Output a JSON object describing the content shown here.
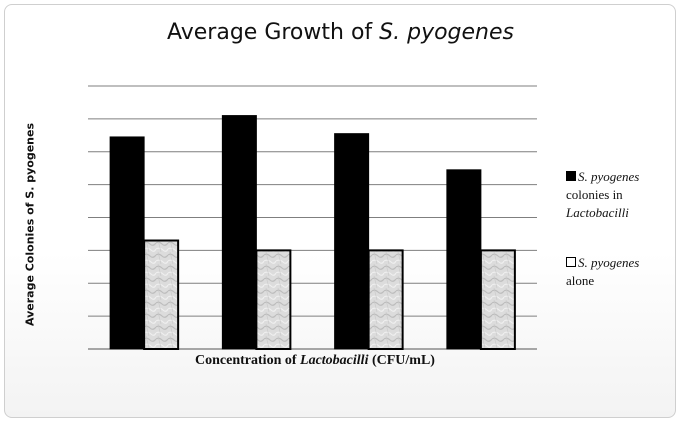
{
  "chart_data": {
    "type": "bar",
    "title_main": "Average Growth of ",
    "title_italic": "S. pyogenes",
    "ylabel": "Average Colonies of S. pyogenes",
    "xlabel_pre": "Concentration of ",
    "xlabel_italic": "Lactobacilli",
    "xlabel_post": " (CFU/mL)",
    "categories": [
      "",
      "",
      "",
      ""
    ],
    "ylim": [
      0,
      8
    ],
    "grid": true,
    "legend_position": "right",
    "series": [
      {
        "name": "S. pyogenes colonies in Lactobacilli",
        "legend_lines": [
          "S. pyogenes",
          "colonies in",
          "Lactobacilli"
        ],
        "values": [
          6.45,
          7.1,
          6.55,
          5.45
        ],
        "color": "#000000"
      },
      {
        "name": "S. pyogenes alone",
        "legend_lines": [
          "S. pyogenes",
          "alone"
        ],
        "values": [
          3.3,
          3.0,
          3.0,
          3.0
        ],
        "color": "#d9d9d9"
      }
    ]
  }
}
